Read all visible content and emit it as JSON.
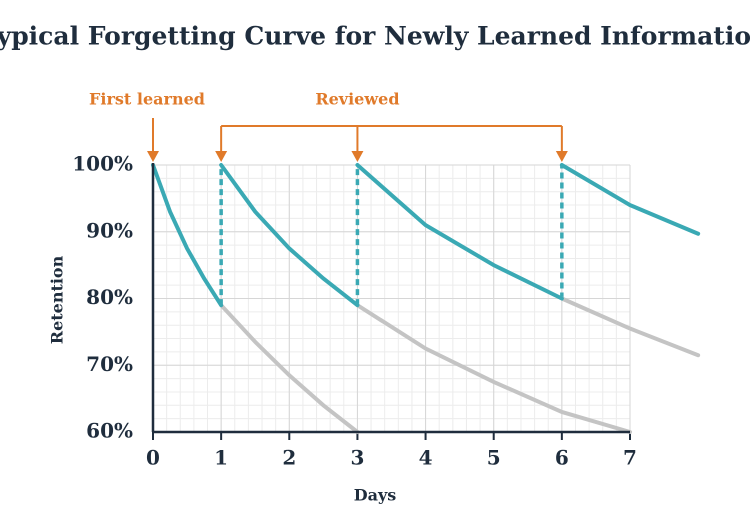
{
  "chart_data": {
    "type": "line",
    "title": "Typical Forgetting Curve for Newly Learned Information",
    "x_label": "Days",
    "y_label": "Retention",
    "xlim": [
      0,
      7
    ],
    "xticks": [
      0,
      1,
      2,
      3,
      4,
      5,
      6,
      7
    ],
    "ylim": [
      60,
      100
    ],
    "yticks": [
      {
        "value": 60,
        "label": "60%"
      },
      {
        "value": 70,
        "label": "70%"
      },
      {
        "value": 80,
        "label": "80%"
      },
      {
        "value": 90,
        "label": "90%"
      },
      {
        "value": 100,
        "label": "100%"
      }
    ],
    "grid": true,
    "series": [
      {
        "color": "#c4c4c4",
        "x": [
          1,
          1.5,
          2,
          2.5,
          3
        ],
        "values": [
          79,
          73.5,
          68.5,
          64,
          60
        ]
      },
      {
        "color": "#c4c4c4",
        "x": [
          3,
          4,
          5,
          6,
          7
        ],
        "values": [
          79,
          72.5,
          67.5,
          63,
          60
        ]
      },
      {
        "color": "#c4c4c4",
        "x": [
          6,
          7,
          8
        ],
        "values": [
          80,
          75.5,
          71.5
        ]
      },
      {
        "color": "#3aa9b4",
        "x": [
          0,
          0.25,
          0.5,
          0.75,
          1
        ],
        "values": [
          100,
          93,
          87.5,
          83,
          79
        ]
      },
      {
        "color": "#3aa9b4",
        "x": [
          1,
          1.5,
          2,
          2.5,
          3
        ],
        "values": [
          100,
          93,
          87.5,
          83,
          79
        ]
      },
      {
        "color": "#3aa9b4",
        "x": [
          3,
          4,
          5,
          6
        ],
        "values": [
          100,
          91,
          85,
          80
        ]
      },
      {
        "color": "#3aa9b4",
        "x": [
          6,
          7,
          8
        ],
        "values": [
          100,
          94,
          89.7
        ]
      }
    ],
    "annotations": [
      {
        "text": "First learned",
        "x": [
          0
        ]
      },
      {
        "text": "Reviewed",
        "x": [
          1,
          3,
          6
        ]
      }
    ],
    "annotation_color": "#e07a2a"
  }
}
